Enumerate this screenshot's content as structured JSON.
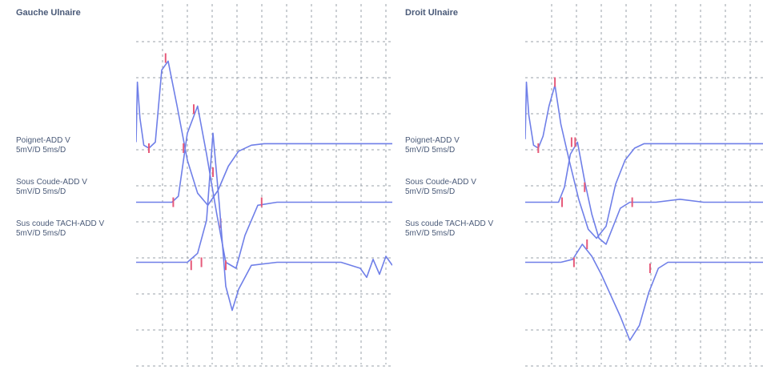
{
  "chart_data": [
    {
      "type": "line",
      "title": "Gauche Ulnaire",
      "xlim": [
        0,
        20
      ],
      "ylim": [
        0,
        12
      ],
      "grid": true,
      "traces": [
        {
          "name": "Poignet-ADD V",
          "scale": "5mV/D 5ms/D",
          "color": "#6f7fe8",
          "marker_color": "#e65a7a",
          "baseline": 7.4,
          "x": [
            0,
            0.1,
            0.3,
            0.6,
            1.0,
            1.5,
            2.0,
            2.5,
            3.2,
            4.0,
            4.8,
            5.6,
            6.4,
            7.2,
            8.0,
            9.0,
            10.0,
            12.0,
            14.0,
            16.0,
            18.0,
            20.0
          ],
          "y": [
            7.4,
            9.4,
            8.2,
            7.3,
            7.2,
            7.4,
            9.8,
            10.1,
            8.6,
            6.8,
            5.7,
            5.3,
            5.8,
            6.6,
            7.1,
            7.3,
            7.35,
            7.35,
            7.35,
            7.35,
            7.35,
            7.35
          ],
          "markers": [
            [
              1.0,
              7.2
            ],
            [
              2.3,
              10.2
            ],
            [
              3.7,
              7.2
            ],
            [
              6.0,
              6.4
            ]
          ]
        },
        {
          "name": "Sous Coude-ADD V",
          "scale": "5mV/D 5ms/D",
          "color": "#6f7fe8",
          "marker_color": "#e65a7a",
          "baseline": 5.4,
          "x": [
            0,
            1.0,
            2.0,
            2.8,
            3.3,
            4.0,
            4.8,
            5.5,
            6.3,
            7.0,
            7.8,
            8.5,
            9.5,
            11.0,
            13.0,
            15.0,
            17.0,
            20.0
          ],
          "y": [
            5.4,
            5.4,
            5.4,
            5.4,
            5.6,
            7.7,
            8.6,
            7.0,
            5.0,
            3.4,
            3.2,
            4.3,
            5.3,
            5.4,
            5.4,
            5.4,
            5.4,
            5.4
          ],
          "markers": [
            [
              2.9,
              5.4
            ],
            [
              4.5,
              8.5
            ],
            [
              6.6,
              4.7
            ],
            [
              9.8,
              5.4
            ]
          ]
        },
        {
          "name": "Sus coude TACH-ADD V",
          "scale": "5mV/D 5ms/D",
          "color": "#6f7fe8",
          "marker_color": "#e65a7a",
          "baseline": 3.5,
          "x": [
            0,
            1.0,
            2.0,
            3.0,
            4.0,
            4.8,
            5.5,
            6.0,
            6.5,
            7.0,
            7.5,
            8.0,
            9.0,
            11.0,
            14.0,
            16.0,
            17.5,
            18.0,
            18.5,
            19.0,
            19.5,
            20.0
          ],
          "y": [
            3.4,
            3.4,
            3.4,
            3.4,
            3.4,
            3.7,
            4.8,
            7.7,
            5.3,
            2.6,
            1.8,
            2.5,
            3.3,
            3.4,
            3.4,
            3.4,
            3.2,
            2.9,
            3.5,
            3.0,
            3.6,
            3.3
          ],
          "markers": [
            [
              4.3,
              3.3
            ],
            [
              5.1,
              3.4
            ],
            [
              7.0,
              3.3
            ]
          ]
        }
      ]
    },
    {
      "type": "line",
      "title": "Droit Ulnaire",
      "xlim": [
        0,
        20
      ],
      "ylim": [
        0,
        12
      ],
      "grid": true,
      "traces": [
        {
          "name": "Poignet-ADD V",
          "scale": "5mV/D 5ms/D",
          "color": "#6f7fe8",
          "marker_color": "#e65a7a",
          "baseline": 7.4,
          "x": [
            0,
            0.1,
            0.3,
            0.7,
            1.1,
            1.5,
            2.0,
            2.5,
            3.0,
            3.7,
            4.5,
            5.3,
            6.0,
            6.8,
            7.6,
            8.4,
            9.2,
            10.0,
            12.0,
            14.0,
            16.0,
            18.0,
            20.0
          ],
          "y": [
            7.5,
            9.4,
            8.3,
            7.3,
            7.2,
            7.6,
            8.6,
            9.3,
            8.0,
            6.8,
            5.5,
            4.5,
            4.2,
            4.6,
            6.0,
            6.8,
            7.2,
            7.35,
            7.35,
            7.35,
            7.35,
            7.35,
            7.35
          ],
          "markers": [
            [
              1.1,
              7.2
            ],
            [
              2.5,
              9.4
            ],
            [
              3.9,
              7.4
            ]
          ]
        },
        {
          "name": "Sous Coude-ADD V",
          "scale": "5mV/D 5ms/D",
          "color": "#6f7fe8",
          "marker_color": "#e65a7a",
          "baseline": 5.4,
          "x": [
            0,
            1.0,
            2.0,
            2.8,
            3.3,
            3.8,
            4.4,
            5.0,
            5.6,
            6.2,
            6.8,
            7.4,
            8.0,
            8.8,
            9.6,
            11.0,
            13.0,
            15.0,
            17.0,
            20.0
          ],
          "y": [
            5.4,
            5.4,
            5.4,
            5.4,
            5.9,
            7.0,
            7.4,
            6.1,
            5.0,
            4.2,
            4.0,
            4.6,
            5.2,
            5.4,
            5.4,
            5.4,
            5.5,
            5.4,
            5.4,
            5.4
          ],
          "markers": [
            [
              3.1,
              5.4
            ],
            [
              4.2,
              7.4
            ],
            [
              5.0,
              5.9
            ],
            [
              9.0,
              5.4
            ]
          ]
        },
        {
          "name": "Sus coude TACH-ADD V",
          "scale": "5mV/D 5ms/D",
          "color": "#6f7fe8",
          "marker_color": "#e65a7a",
          "baseline": 3.5,
          "x": [
            0,
            1.0,
            2.0,
            3.0,
            4.0,
            4.8,
            5.6,
            6.4,
            7.2,
            8.0,
            8.8,
            9.6,
            10.4,
            11.2,
            12.0,
            13.0,
            14.0,
            16.0,
            18.0,
            20.0
          ],
          "y": [
            3.4,
            3.4,
            3.4,
            3.4,
            3.5,
            4.0,
            3.6,
            3.0,
            2.3,
            1.6,
            0.8,
            1.3,
            2.4,
            3.2,
            3.4,
            3.4,
            3.4,
            3.4,
            3.4,
            3.4
          ],
          "markers": [
            [
              4.1,
              3.4
            ],
            [
              5.2,
              4.0
            ],
            [
              10.5,
              3.2
            ]
          ]
        }
      ]
    }
  ]
}
